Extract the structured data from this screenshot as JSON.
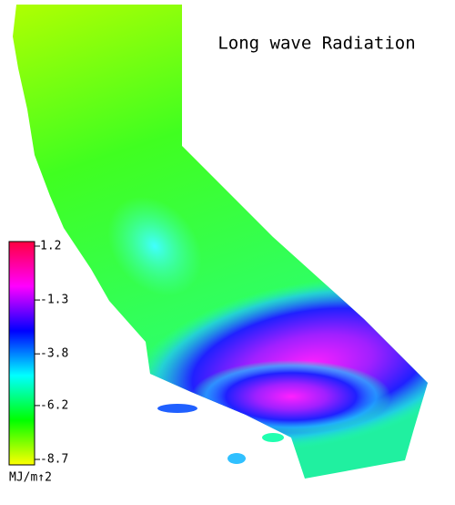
{
  "map": {
    "title": "Long wave Radiation",
    "colorbar": {
      "range": [
        -8.7,
        1.2
      ],
      "ticks": [
        1.2,
        -1.3,
        -3.8,
        -6.2,
        -8.7
      ],
      "unit_label": "MJ/m↑2",
      "colors": [
        "#ffff00",
        "#00ff00",
        "#00ffff",
        "#0000ff",
        "#ff00ff",
        "#ff0040"
      ]
    }
  }
}
